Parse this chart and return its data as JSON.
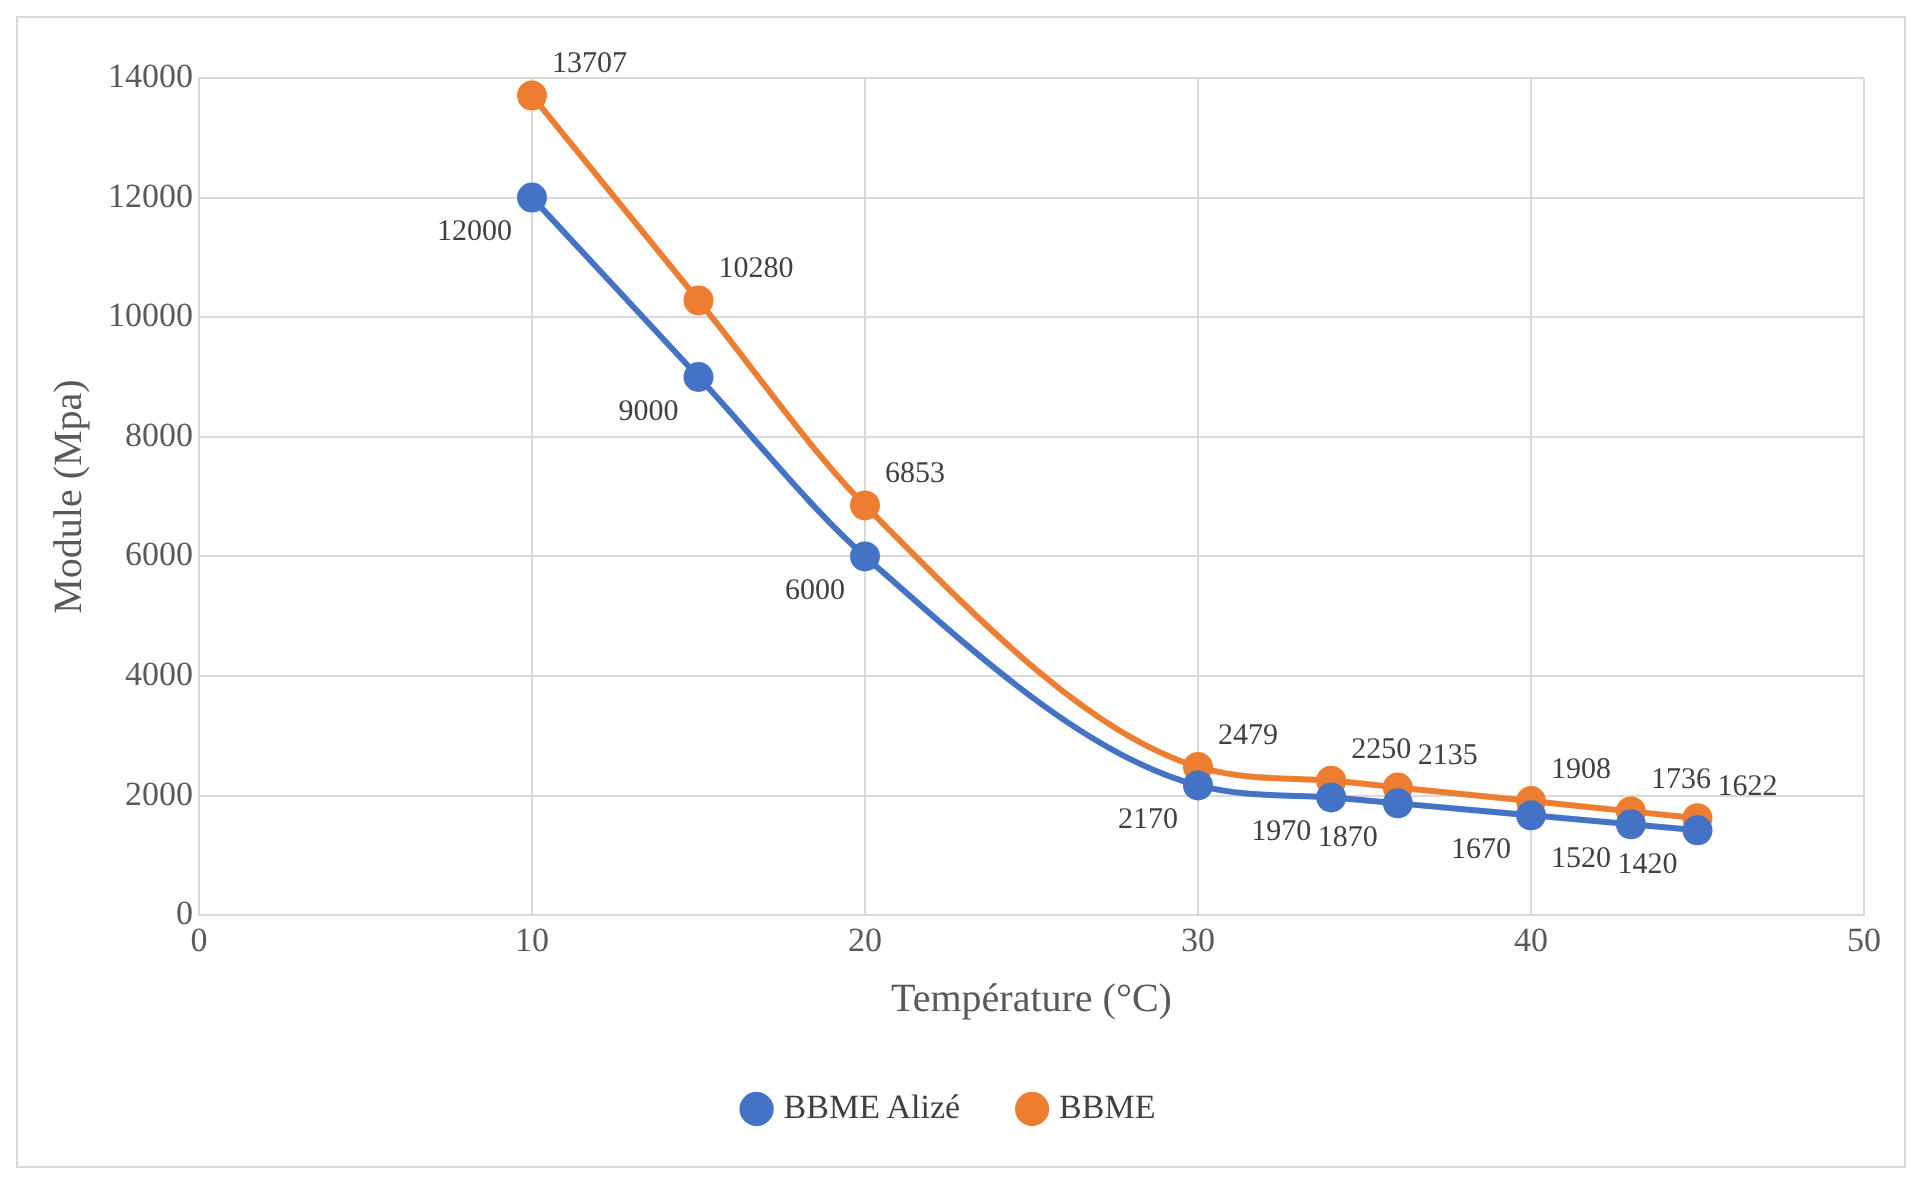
{
  "chart_data": {
    "type": "line",
    "xlabel": "Température (°C)",
    "ylabel": "Module (Mpa)",
    "x": [
      10,
      15,
      20,
      30,
      34,
      36,
      40,
      43,
      45
    ],
    "series": [
      {
        "name": "BBME Alizé",
        "color": "#4472c4",
        "values": [
          12000,
          9000,
          6000,
          2170,
          1970,
          1870,
          1670,
          1520,
          1420
        ]
      },
      {
        "name": "BBME",
        "color": "#ed7d31",
        "values": [
          13707,
          10280,
          6853,
          2479,
          2250,
          2135,
          1908,
          1736,
          1622
        ]
      }
    ],
    "xlim": [
      0,
      50
    ],
    "xticks": [
      0,
      10,
      20,
      30,
      40,
      50
    ],
    "ylim": [
      0,
      14000
    ],
    "yticks": [
      0,
      2000,
      4000,
      6000,
      8000,
      10000,
      12000,
      14000
    ],
    "grid": true,
    "legend": "bottom",
    "marker": "circle",
    "line_style": "solid",
    "data_labels": true
  }
}
